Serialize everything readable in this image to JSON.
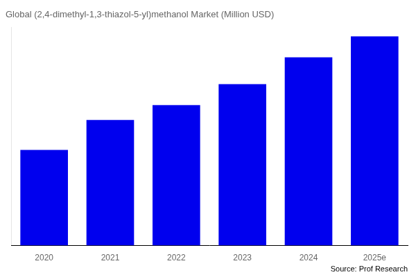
{
  "chart_data": {
    "type": "bar",
    "title": "Global (2,4-dimethyl-1,3-thiazol-5-yl)methanol Market (Million USD)",
    "categories": [
      "2020",
      "2021",
      "2022",
      "2023",
      "2024",
      "2025e"
    ],
    "values": [
      32,
      42,
      47,
      54,
      63,
      70
    ],
    "color": "#0000EE",
    "ylim": [
      0,
      73
    ],
    "yticks": [],
    "grid": false,
    "tick_labels": "x",
    "annotations": [
      "Source: Prof Research"
    ]
  }
}
